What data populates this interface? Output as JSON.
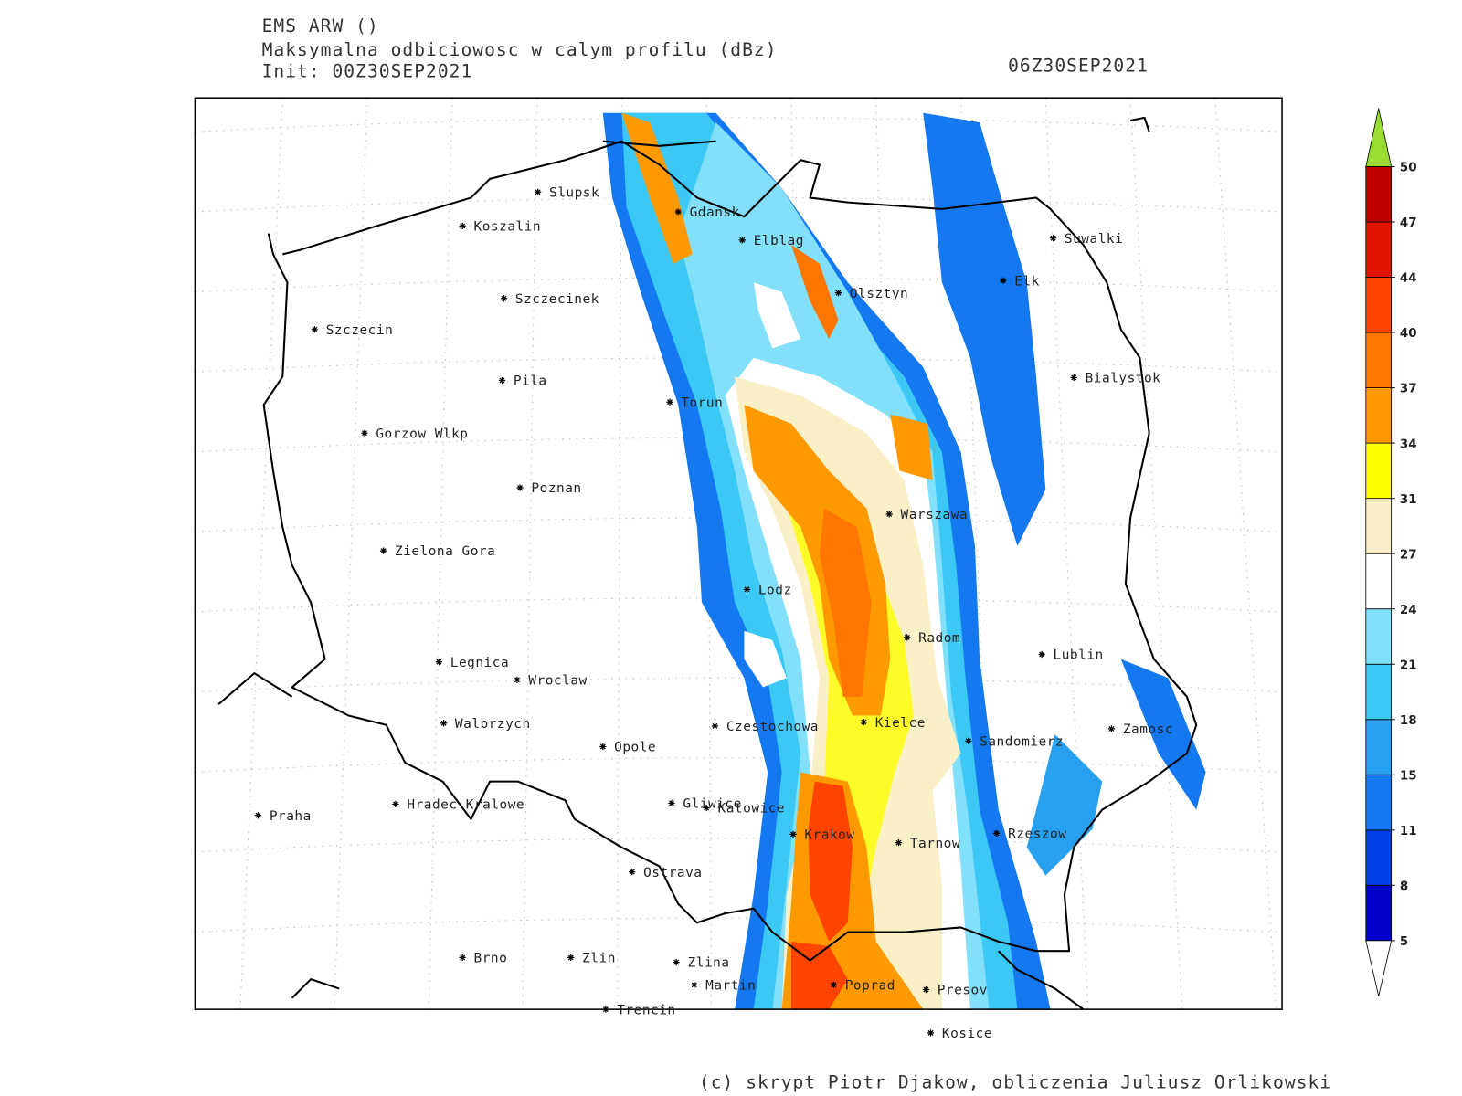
{
  "header": {
    "model": "EMS ARW ()",
    "field": "Maksymalna odbiciowosc w calym profilu (dBz)",
    "init": "Init: 00Z30SEP2021",
    "valid": "06Z30SEP2021"
  },
  "cities": [
    "Slupsk",
    "Koszalin",
    "Gdansk",
    "Elblag",
    "Suwalki",
    "Elk",
    "Szczecinek",
    "Olsztyn",
    "Szczecin",
    "Bialystok",
    "Pila",
    "Torun",
    "Gorzow Wlkp",
    "Poznan",
    "Warszawa",
    "Zielona Gora",
    "Lodz",
    "Radom",
    "Lublin",
    "Legnica",
    "Wroclaw",
    "Walbrzych",
    "Czestochowa",
    "Kielce",
    "Zamosc",
    "Sandomierz",
    "Opole",
    "Gliwice",
    "Katowice",
    "Hradec Kralowe",
    "Praha",
    "Krakow",
    "Tarnow",
    "Rzeszow",
    "Ostrava",
    "Brno",
    "Zlin",
    "Zlina",
    "Martin",
    "Poprad",
    "Presov",
    "Trencin",
    "Kosice"
  ],
  "colorbar": {
    "levels": [
      5,
      8,
      11,
      15,
      18,
      21,
      24,
      27,
      31,
      34,
      37,
      40,
      44,
      47,
      50
    ],
    "colors": [
      "#0000c8",
      "#0040e6",
      "#1478f0",
      "#28a0f0",
      "#3cc8f5",
      "#82e0fa",
      "#ffffff",
      "#faf0c8",
      "#ffff00",
      "#ff9900",
      "#ff7700",
      "#ff4400",
      "#e01400",
      "#c00000"
    ],
    "under_color": "#ffffff",
    "over_color": "#99dd33"
  },
  "credit": "(c) skrypt Piotr Djakow, obliczenia Juliusz Orlikowski"
}
